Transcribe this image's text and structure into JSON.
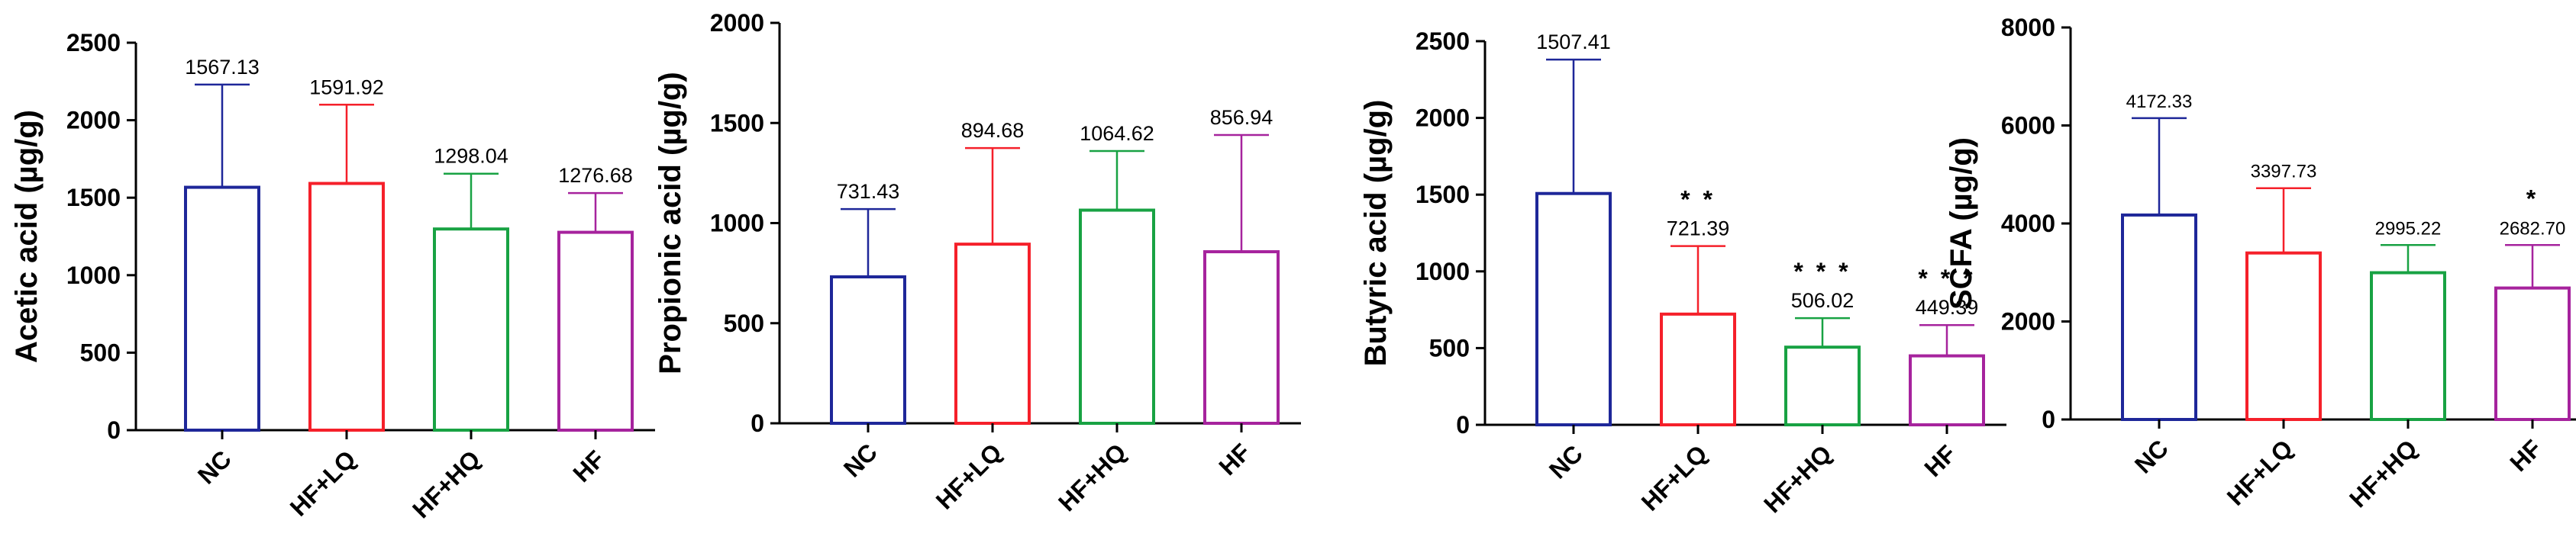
{
  "chart_data": [
    {
      "type": "bar",
      "categories": [
        "NC",
        "HF+LQ",
        "HF+HQ",
        "HF"
      ],
      "values": [
        1567.13,
        1591.92,
        1298.04,
        1276.68
      ],
      "value_labels": [
        "1567.13",
        "1591.92",
        "1298.04",
        "1276.68"
      ],
      "error_upper": [
        2230,
        2100,
        1655,
        1530
      ],
      "significance": [
        "",
        "",
        "",
        ""
      ],
      "ylabel": "Acetic acid (µg/g)",
      "ylim": [
        0,
        2500
      ],
      "yticks": [
        0,
        500,
        1000,
        1500,
        2000,
        2500
      ],
      "colors": [
        "#1e2799",
        "#f5202a",
        "#18a243",
        "#a6239d"
      ]
    },
    {
      "type": "bar",
      "categories": [
        "NC",
        "HF+LQ",
        "HF+HQ",
        "HF"
      ],
      "values": [
        731.43,
        894.68,
        1064.62,
        856.94
      ],
      "value_labels": [
        "731.43",
        "894.68",
        "1064.62",
        "856.94"
      ],
      "error_upper": [
        1070,
        1375,
        1360,
        1440
      ],
      "significance": [
        "",
        "",
        "",
        ""
      ],
      "ylabel": "Propionic acid (µg/g)",
      "ylim": [
        0,
        2000
      ],
      "yticks": [
        0,
        500,
        1000,
        1500,
        2000
      ],
      "colors": [
        "#1e2799",
        "#f5202a",
        "#18a243",
        "#a6239d"
      ]
    },
    {
      "type": "bar",
      "categories": [
        "NC",
        "HF+LQ",
        "HF+HQ",
        "HF"
      ],
      "values": [
        1507.41,
        721.39,
        506.02,
        449.39
      ],
      "value_labels": [
        "1507.41",
        "721.39",
        "506.02",
        "449.39"
      ],
      "error_upper": [
        2380,
        1165,
        695,
        650
      ],
      "significance": [
        "",
        "* *",
        "* * *",
        "* * *"
      ],
      "ylabel": "Butyric acid (µg/g)",
      "ylim": [
        0,
        2500
      ],
      "yticks": [
        0,
        500,
        1000,
        1500,
        2000,
        2500
      ],
      "colors": [
        "#1e2799",
        "#f5202a",
        "#18a243",
        "#a6239d"
      ]
    },
    {
      "type": "bar",
      "categories": [
        "NC",
        "HF+LQ",
        "HF+HQ",
        "HF"
      ],
      "values": [
        4172.33,
        3397.73,
        2995.22,
        2682.7
      ],
      "value_labels": [
        "4172.33",
        "3397.73",
        "2995.22",
        "2682.70"
      ],
      "error_upper": [
        6150,
        4720,
        3560,
        3560
      ],
      "significance": [
        "",
        "",
        "",
        "*"
      ],
      "ylabel": "SCFA (µg/g)",
      "ylim": [
        0,
        8000
      ],
      "yticks": [
        0,
        2000,
        4000,
        6000,
        8000
      ],
      "colors": [
        "#1e2799",
        "#f5202a",
        "#18a243",
        "#a6239d"
      ]
    }
  ]
}
